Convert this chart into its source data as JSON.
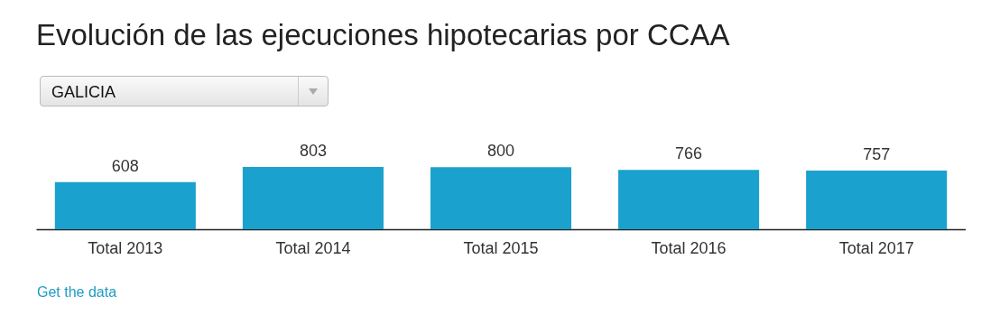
{
  "chart_data": {
    "type": "bar",
    "title": "Evolución de las ejecuciones hipotecarias por CCAA",
    "subtitle": "GALICIA",
    "categories": [
      "Total 2013",
      "Total 2014",
      "Total 2015",
      "Total 2016",
      "Total 2017"
    ],
    "values": [
      608,
      803,
      800,
      766,
      757
    ],
    "color": "#1aa1cd",
    "data_labels": true,
    "annotations": [
      "Get the data"
    ]
  }
}
